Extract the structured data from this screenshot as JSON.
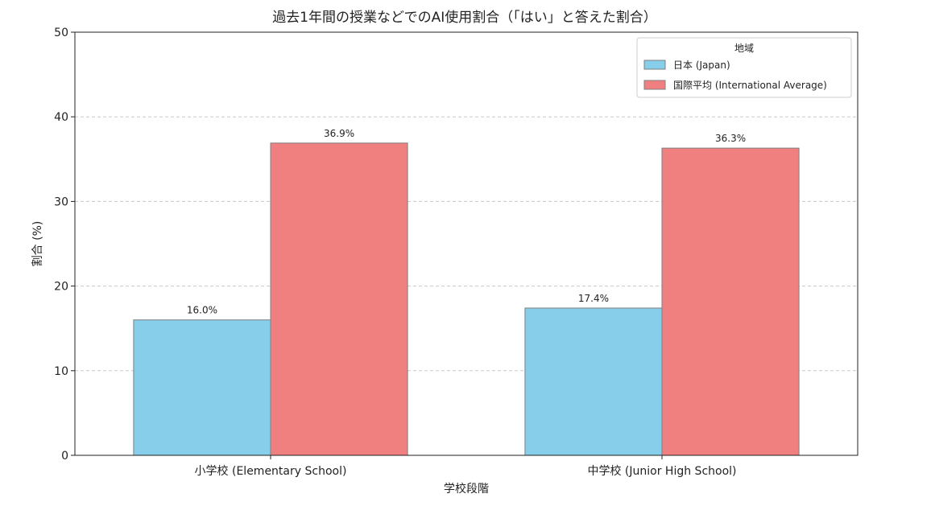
{
  "chart_data": {
    "type": "bar",
    "title": "過去1年間の授業などでのAI使用割合（「はい」と答えた割合）",
    "xlabel": "学校段階",
    "ylabel": "割合 (%)",
    "categories": [
      "小学校 (Elementary School)",
      "中学校 (Junior High School)"
    ],
    "series": [
      {
        "name": "日本 (Japan)",
        "values": [
          16.0,
          17.4
        ],
        "labels": [
          "16.0%",
          "17.4%"
        ],
        "color": "#87ceeb"
      },
      {
        "name": "国際平均 (International Average)",
        "values": [
          36.9,
          36.3
        ],
        "labels": [
          "36.9%",
          "36.3%"
        ],
        "color": "#f08080"
      }
    ],
    "ylim": [
      0,
      50
    ],
    "yticks": [
      0,
      10,
      20,
      30,
      40,
      50
    ],
    "ytick_labels": [
      "0",
      "10",
      "20",
      "30",
      "40",
      "50"
    ],
    "grid": "y-dashed",
    "legend": {
      "title": "地域",
      "placement": "top-right"
    },
    "edge_color": "#7f7f7f"
  }
}
